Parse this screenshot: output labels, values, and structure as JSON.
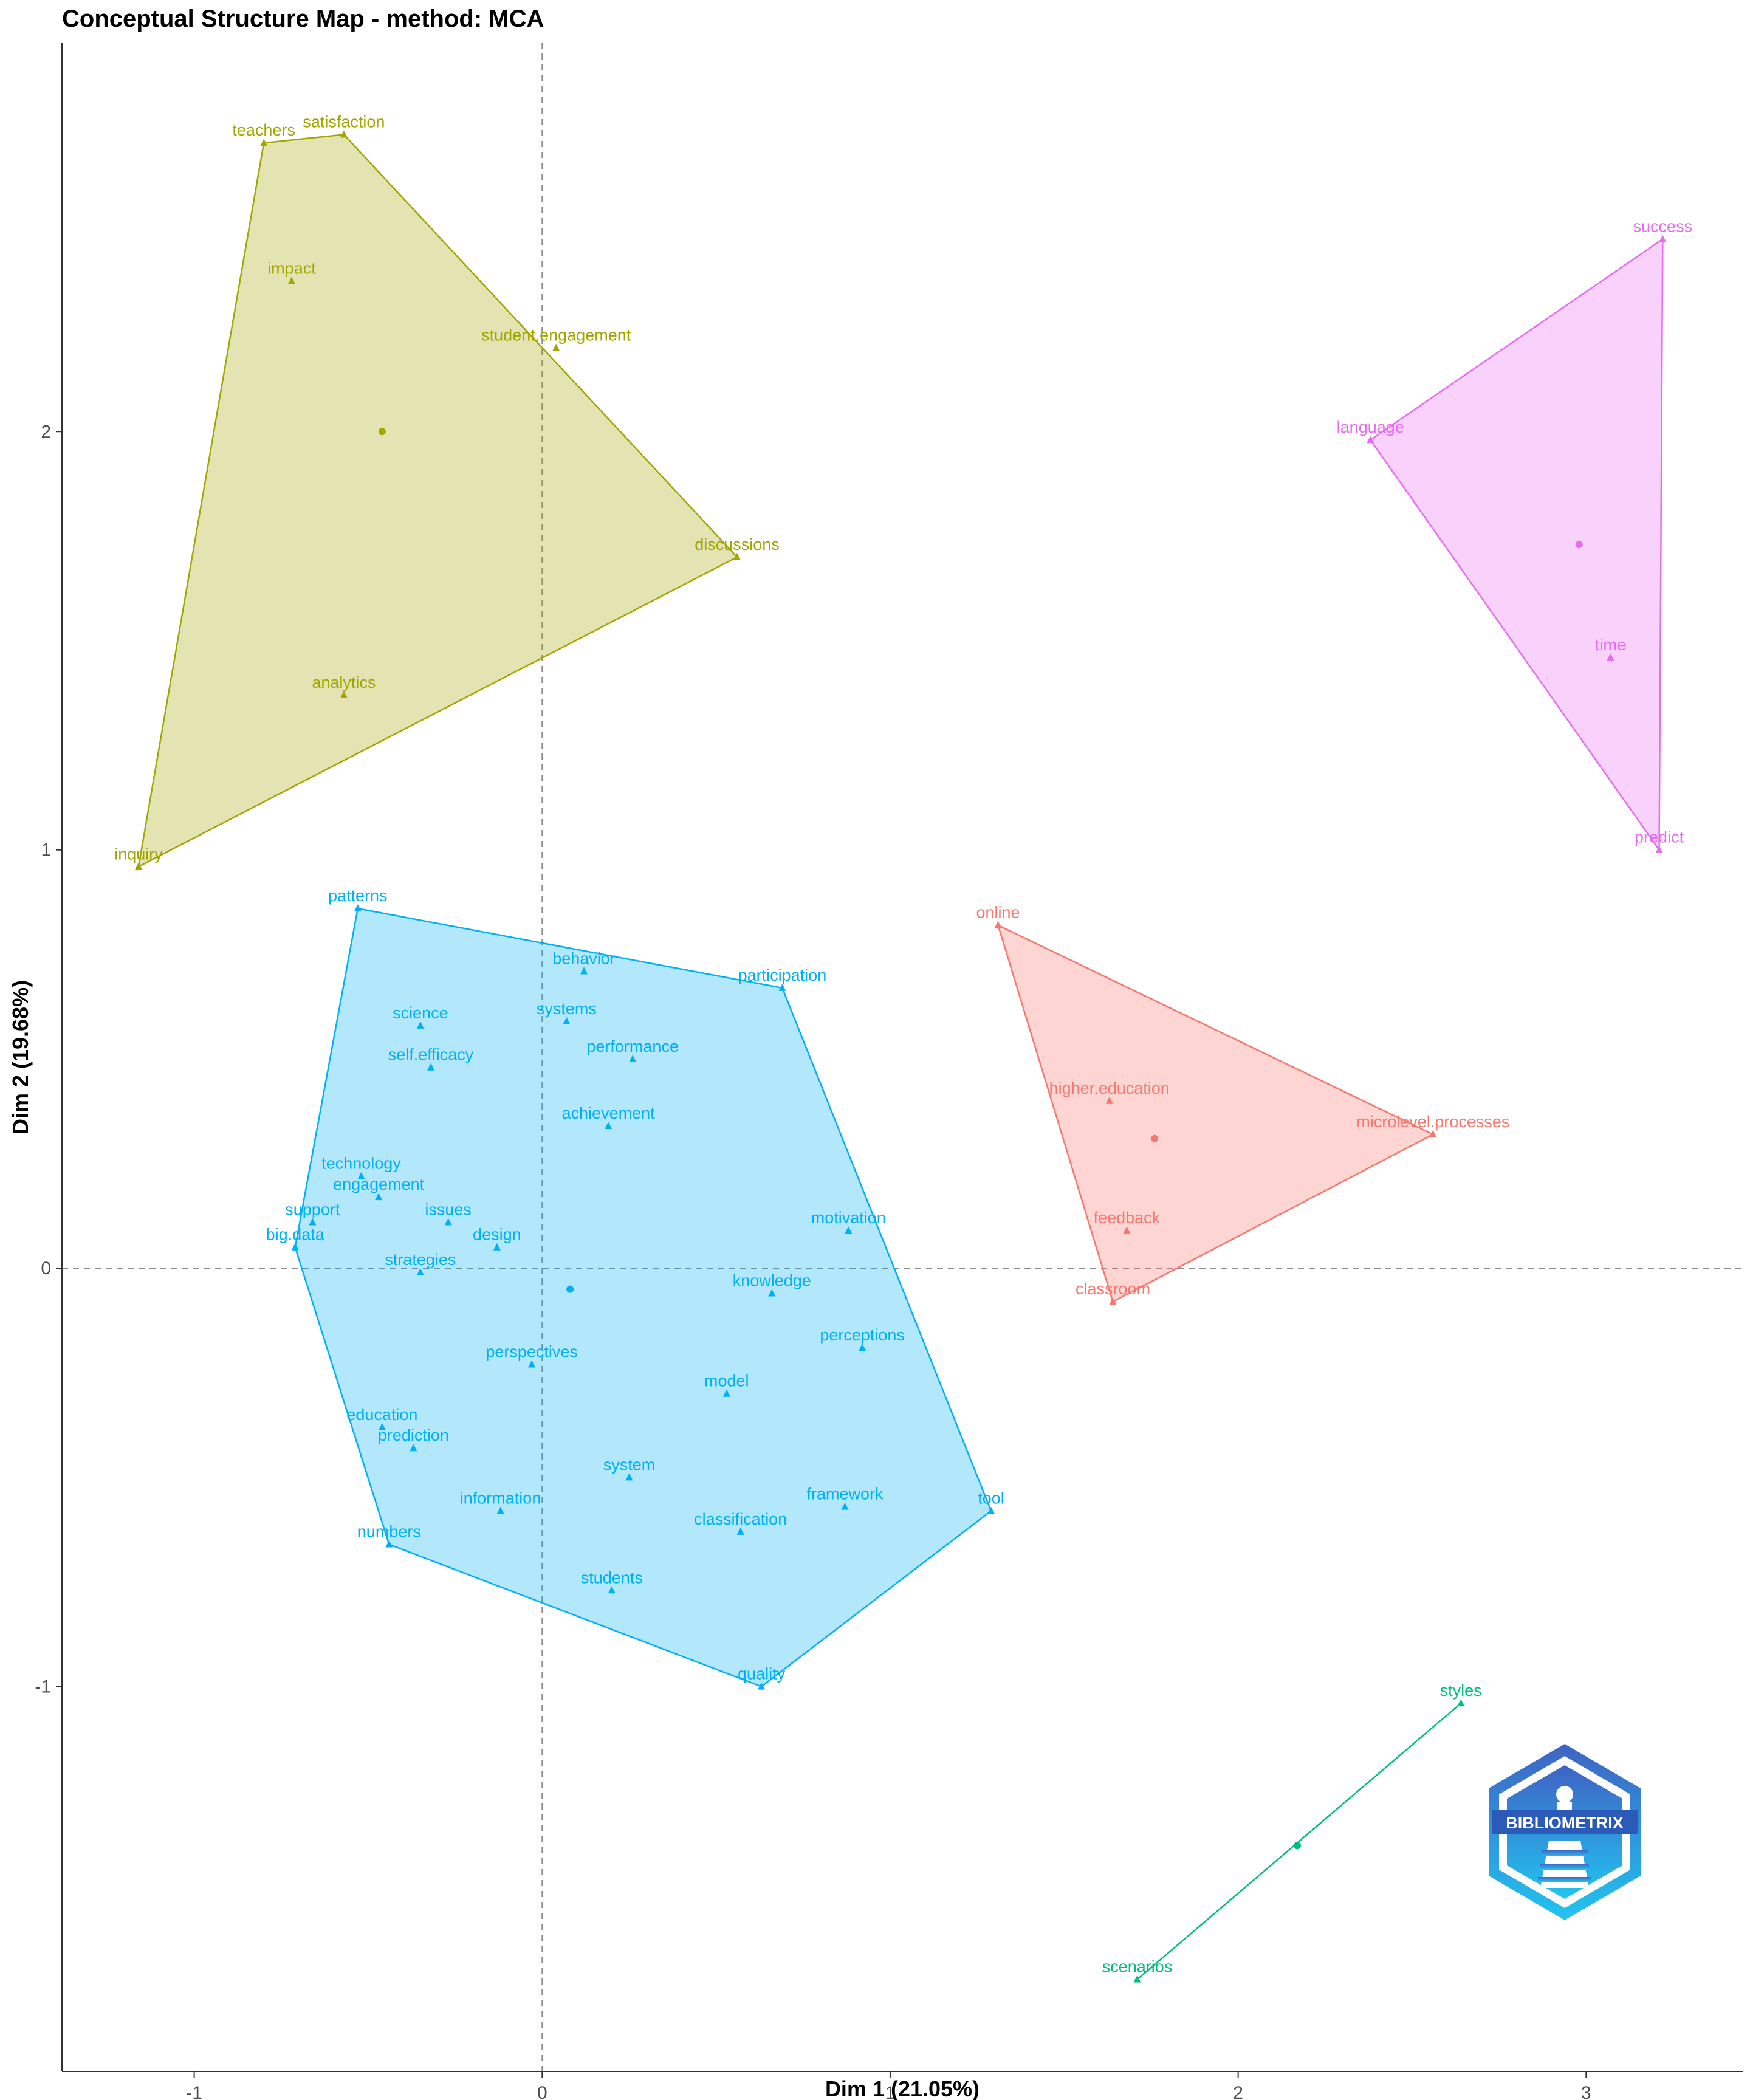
{
  "chart_data": {
    "type": "scatter",
    "title": "Conceptual Structure Map - method: MCA",
    "xlabel": "Dim 1 (21.05%)",
    "ylabel": "Dim 2 (19.68%)",
    "xlim": [
      -1.38,
      3.45
    ],
    "ylim": [
      -1.92,
      2.93
    ],
    "x_ticks": [
      -1,
      0,
      1,
      2,
      3
    ],
    "y_ticks": [
      -1,
      0,
      1,
      2
    ],
    "reference_lines": {
      "x": 0,
      "y": 0,
      "style": "dashed"
    },
    "grid": false,
    "clusters": [
      {
        "color": "#A3A500",
        "fill": "#A3A500",
        "centroid": [
          -0.46,
          2.0
        ],
        "hull": [
          "inquiry",
          "teachers",
          "satisfaction",
          "discussions"
        ],
        "points": [
          {
            "label": "satisfaction",
            "x": -0.57,
            "y": 2.71
          },
          {
            "label": "teachers",
            "x": -0.8,
            "y": 2.69
          },
          {
            "label": "impact",
            "x": -0.72,
            "y": 2.36
          },
          {
            "label": "student.engagement",
            "x": 0.04,
            "y": 2.2
          },
          {
            "label": "discussions",
            "x": 0.56,
            "y": 1.7
          },
          {
            "label": "analytics",
            "x": -0.57,
            "y": 1.37
          },
          {
            "label": "inquiry",
            "x": -1.16,
            "y": 0.96
          }
        ]
      },
      {
        "color": "#E76BF3",
        "fill": "#E76BF3",
        "centroid": [
          2.98,
          1.73
        ],
        "hull": [
          "success",
          "language",
          "predict"
        ],
        "points": [
          {
            "label": "success",
            "x": 3.22,
            "y": 2.46
          },
          {
            "label": "language",
            "x": 2.38,
            "y": 1.98
          },
          {
            "label": "time",
            "x": 3.07,
            "y": 1.46
          },
          {
            "label": "predict",
            "x": 3.21,
            "y": 1.0
          }
        ]
      },
      {
        "color": "#00B0F6",
        "fill": "#00B0F6",
        "centroid": [
          0.08,
          -0.05
        ],
        "hull": [
          "patterns",
          "participation",
          "tool",
          "quality",
          "numbers",
          "big.data"
        ],
        "points": [
          {
            "label": "patterns",
            "x": -0.53,
            "y": 0.86
          },
          {
            "label": "behavior",
            "x": 0.12,
            "y": 0.71
          },
          {
            "label": "participation",
            "x": 0.69,
            "y": 0.67
          },
          {
            "label": "science",
            "x": -0.35,
            "y": 0.58
          },
          {
            "label": "systems",
            "x": 0.07,
            "y": 0.59
          },
          {
            "label": "self.efficacy",
            "x": -0.32,
            "y": 0.48
          },
          {
            "label": "performance",
            "x": 0.26,
            "y": 0.5
          },
          {
            "label": "achievement",
            "x": 0.19,
            "y": 0.34
          },
          {
            "label": "technology",
            "x": -0.52,
            "y": 0.22
          },
          {
            "label": "engagement",
            "x": -0.47,
            "y": 0.17
          },
          {
            "label": "support",
            "x": -0.66,
            "y": 0.11
          },
          {
            "label": "issues",
            "x": -0.27,
            "y": 0.11
          },
          {
            "label": "design",
            "x": -0.13,
            "y": 0.05
          },
          {
            "label": "big.data",
            "x": -0.71,
            "y": 0.05
          },
          {
            "label": "strategies",
            "x": -0.35,
            "y": -0.01
          },
          {
            "label": "motivation",
            "x": 0.88,
            "y": 0.09
          },
          {
            "label": "knowledge",
            "x": 0.66,
            "y": -0.06
          },
          {
            "label": "perceptions",
            "x": 0.92,
            "y": -0.19
          },
          {
            "label": "perspectives",
            "x": -0.03,
            "y": -0.23
          },
          {
            "label": "model",
            "x": 0.53,
            "y": -0.3
          },
          {
            "label": "education",
            "x": -0.46,
            "y": -0.38
          },
          {
            "label": "prediction",
            "x": -0.37,
            "y": -0.43
          },
          {
            "label": "system",
            "x": 0.25,
            "y": -0.5
          },
          {
            "label": "framework",
            "x": 0.87,
            "y": -0.57
          },
          {
            "label": "information",
            "x": -0.12,
            "y": -0.58
          },
          {
            "label": "tool",
            "x": 1.29,
            "y": -0.58
          },
          {
            "label": "classification",
            "x": 0.57,
            "y": -0.63
          },
          {
            "label": "numbers",
            "x": -0.44,
            "y": -0.66
          },
          {
            "label": "students",
            "x": 0.2,
            "y": -0.77
          },
          {
            "label": "quality",
            "x": 0.63,
            "y": -1.0
          }
        ]
      },
      {
        "color": "#F8766D",
        "fill": "#F8766D",
        "centroid": [
          1.76,
          0.31
        ],
        "hull": [
          "online",
          "microlevel.processes",
          "classroom"
        ],
        "points": [
          {
            "label": "online",
            "x": 1.31,
            "y": 0.82
          },
          {
            "label": "higher.education",
            "x": 1.63,
            "y": 0.4
          },
          {
            "label": "microlevel.processes",
            "x": 2.56,
            "y": 0.32
          },
          {
            "label": "feedback",
            "x": 1.68,
            "y": 0.09
          },
          {
            "label": "classroom",
            "x": 1.64,
            "y": -0.08
          }
        ]
      },
      {
        "color": "#00BF7D",
        "fill": "#00BF7D",
        "centroid": [
          2.17,
          -1.38
        ],
        "hull": [
          "styles",
          "scenarios"
        ],
        "points": [
          {
            "label": "styles",
            "x": 2.64,
            "y": -1.04
          },
          {
            "label": "scenarios",
            "x": 1.71,
            "y": -1.7
          }
        ]
      }
    ]
  },
  "logo": {
    "text": "BIBLIOMETRIX"
  }
}
